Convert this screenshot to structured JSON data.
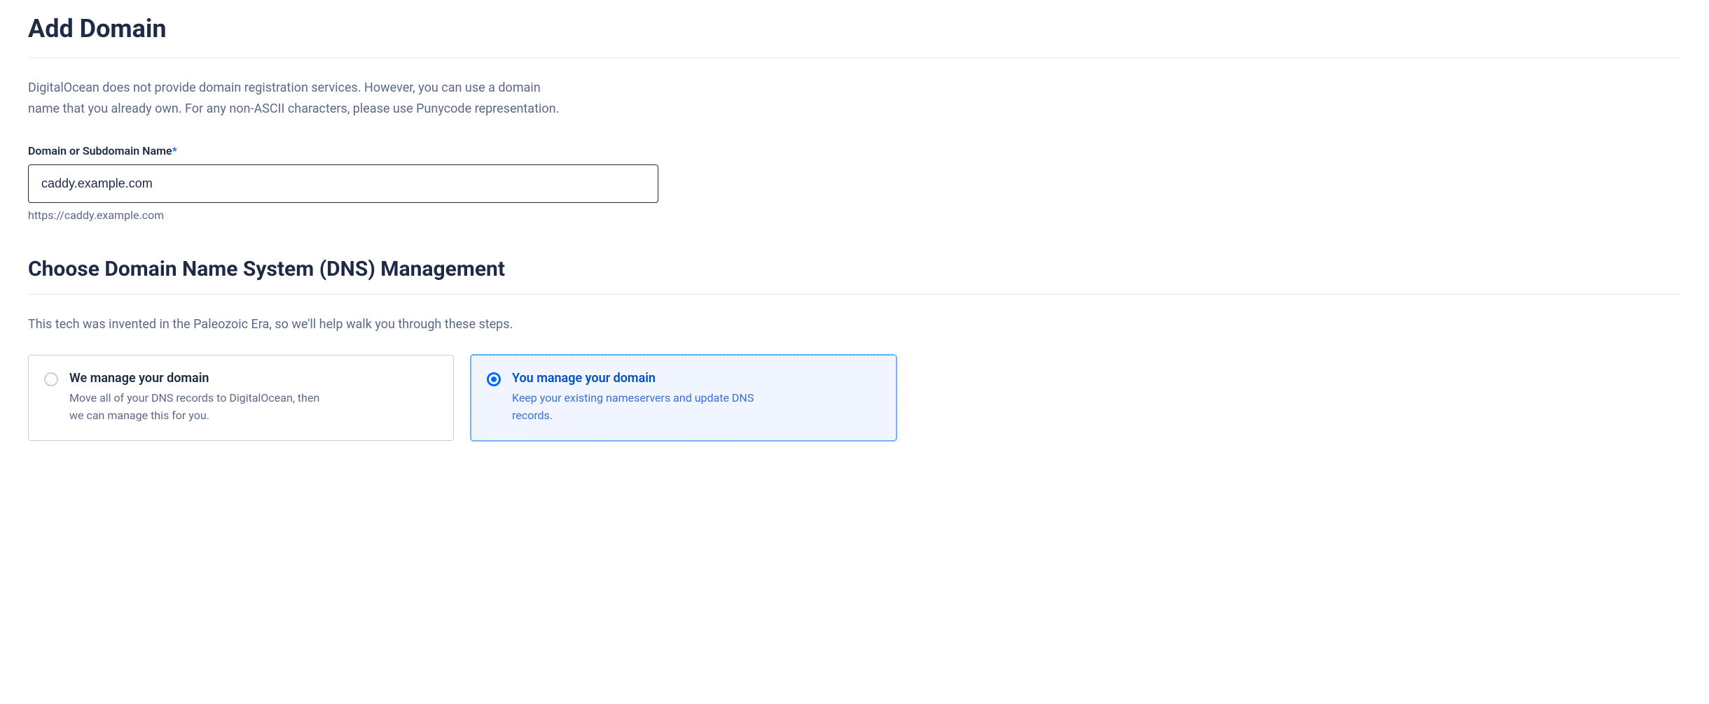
{
  "header": {
    "title": "Add Domain"
  },
  "intro": {
    "text": "DigitalOcean does not provide domain registration services. However, you can use a domain name that you already own. For any non-ASCII characters, please use Punycode representation."
  },
  "domain_field": {
    "label": "Domain or Subdomain Name",
    "required_mark": "*",
    "value": "caddy.example.com",
    "helper": "https://caddy.example.com"
  },
  "dns_section": {
    "title": "Choose Domain Name System (DNS) Management",
    "intro": "This tech was invented in the Paleozoic Era, so we'll help walk you through these steps."
  },
  "options": [
    {
      "title": "We manage your domain",
      "desc": "Move all of your DNS records to DigitalOcean, then we can manage this for you.",
      "selected": false
    },
    {
      "title": "You manage your domain",
      "desc": "Keep your existing nameservers and update DNS records.",
      "selected": true
    }
  ],
  "colors": {
    "heading": "#1f2a44",
    "body_text": "#5b6987",
    "accent": "#0069ff",
    "selected_bg": "#f0f5ff",
    "border": "#c9ced8",
    "divider": "#e5e8ed"
  }
}
